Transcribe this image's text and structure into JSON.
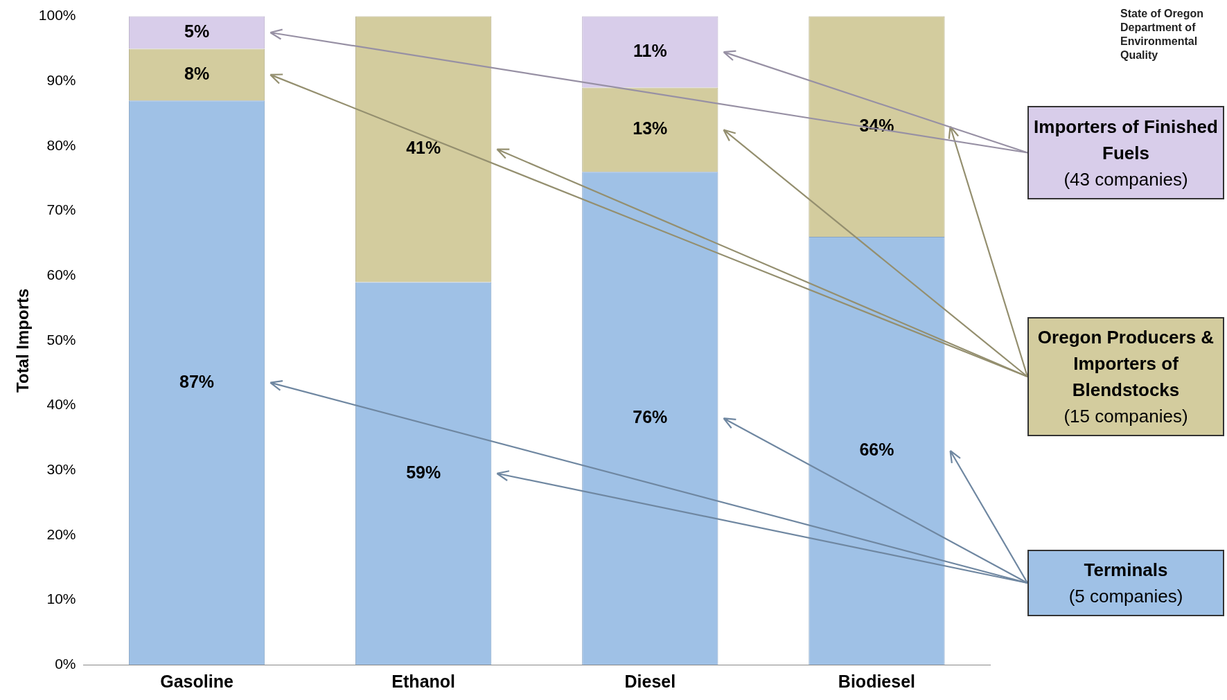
{
  "chart_data": {
    "type": "bar",
    "stacked": true,
    "ylabel": "Total Imports",
    "categories": [
      "Gasoline",
      "Ethanol",
      "Diesel",
      "Biodiesel"
    ],
    "series": [
      {
        "name": "Terminals (5 companies)",
        "color": "#9fc1e6",
        "values": [
          87,
          59,
          76,
          66
        ],
        "value_labels": [
          "87%",
          "59%",
          "76%",
          "66%"
        ]
      },
      {
        "name": "Oregon Producers & Importers of Blendstocks (15 companies)",
        "color": "#d3cc9e",
        "values": [
          8,
          41,
          13,
          34
        ],
        "value_labels": [
          "8%",
          "41%",
          "13%",
          "34%"
        ]
      },
      {
        "name": "Importers of Finished Fuels (43 companies)",
        "color": "#d8cdea",
        "values": [
          5,
          null,
          11,
          null
        ],
        "value_labels": [
          "5%",
          null,
          "11%",
          null
        ]
      }
    ],
    "ylim": [
      0,
      100
    ],
    "yticks": [
      {
        "value": 0,
        "label": "0%"
      },
      {
        "value": 10,
        "label": "10%"
      },
      {
        "value": 20,
        "label": "20%"
      },
      {
        "value": 30,
        "label": "30%"
      },
      {
        "value": 40,
        "label": "40%"
      },
      {
        "value": 50,
        "label": "50%"
      },
      {
        "value": 60,
        "label": "60%"
      },
      {
        "value": 70,
        "label": "70%"
      },
      {
        "value": 80,
        "label": "80%"
      },
      {
        "value": 90,
        "label": "90%"
      },
      {
        "value": 100,
        "label": "100%"
      }
    ],
    "grid": false,
    "legend": "right",
    "annotations": [
      "State of Oregon Department of Environmental Quality"
    ]
  }
}
